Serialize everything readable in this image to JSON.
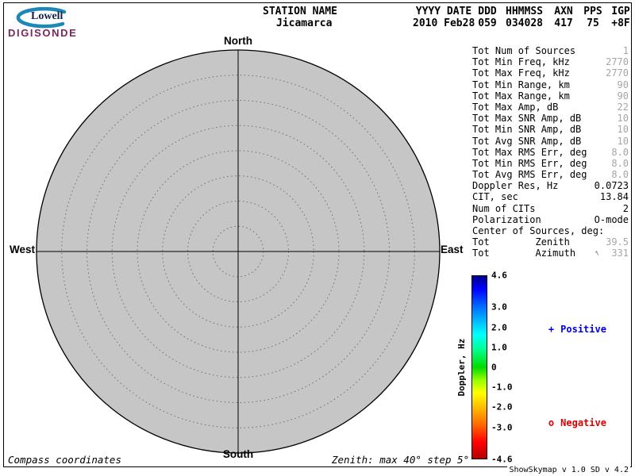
{
  "logo": {
    "name": "Lowell",
    "product": "DIGISONDE"
  },
  "header": {
    "station": {
      "label": "STATION NAME",
      "value": "Jicamarca"
    },
    "fields": [
      {
        "label": "YYYY DATE",
        "value": "2010 Feb28"
      },
      {
        "label": "DDD",
        "value": "059"
      },
      {
        "label": "HHMMSS",
        "value": "034028"
      },
      {
        "label": "AXN",
        "value": "417"
      },
      {
        "label": "PPS",
        "value": "75"
      },
      {
        "label": "IGP",
        "value": "+8F"
      }
    ]
  },
  "skymap": {
    "compass": {
      "north": "North",
      "south": "South",
      "east": "East",
      "west": "West"
    },
    "zenith_max_deg": 40,
    "zenith_step_deg": 5,
    "fill_color": "#c6c6c6",
    "coordinates_note": "Compass coordinates",
    "zenith_note": "Zenith: max 40°  step 5°"
  },
  "stats": {
    "dim_color": "#a6a6a6",
    "rows": [
      {
        "label": "Tot Num of Sources",
        "value": "1",
        "dim": true
      },
      {
        "label": "Tot Min Freq, kHz",
        "value": "2770",
        "dim": true
      },
      {
        "label": "Tot Max Freq, kHz",
        "value": "2770",
        "dim": true
      },
      {
        "label": "Tot Min Range, km",
        "value": "90",
        "dim": true
      },
      {
        "label": "Tot Max Range, km",
        "value": "90",
        "dim": true
      },
      {
        "label": "Tot Max Amp, dB",
        "value": "22",
        "dim": true
      },
      {
        "label": "Tot Max SNR Amp, dB",
        "value": "10",
        "dim": true
      },
      {
        "label": "Tot Min SNR Amp, dB",
        "value": "10",
        "dim": true
      },
      {
        "label": "Tot Avg SNR Amp, dB",
        "value": "10",
        "dim": true
      },
      {
        "label": "Tot Max RMS Err, deg",
        "value": "8.0",
        "dim": true
      },
      {
        "label": "Tot Min RMS Err, deg",
        "value": "8.0",
        "dim": true
      },
      {
        "label": "Tot Avg RMS Err, deg",
        "value": "8.0",
        "dim": true
      },
      {
        "label": "Doppler Res, Hz",
        "value": "0.0723",
        "dim": false
      },
      {
        "label": "CIT, sec",
        "value": "13.84",
        "dim": false
      },
      {
        "label": "Num of CITs",
        "value": "2",
        "dim": false
      },
      {
        "label": "Polarization",
        "value": "O-mode",
        "dim": false
      },
      {
        "label": "Center of Sources, deg:",
        "value": "",
        "dim": false
      },
      {
        "label": "Tot        Zenith",
        "value": "39.5",
        "dim": true
      },
      {
        "label": "Tot        Azimuth",
        "value": "331",
        "dim": true,
        "arrow": true
      }
    ]
  },
  "colorbar": {
    "title": "Doppler, Hz",
    "min": -4.6,
    "max": 4.6,
    "ticks": [
      {
        "label": "4.6",
        "value": 4.6
      },
      {
        "label": "3.0",
        "value": 3.0
      },
      {
        "label": "2.0",
        "value": 2.0
      },
      {
        "label": "1.0",
        "value": 1.0
      },
      {
        "label": "0",
        "value": 0
      },
      {
        "label": "-1.0",
        "value": -1.0
      },
      {
        "label": "-2.0",
        "value": -2.0
      },
      {
        "label": "-3.0",
        "value": -3.0
      },
      {
        "label": "-4.6",
        "value": -4.6
      }
    ],
    "gradient": [
      "#00008b 0%",
      "#0000ff 7%",
      "#0064ff 16%",
      "#00b4ff 24%",
      "#00ffff 32%",
      "#00ff96 40%",
      "#00dc00 50%",
      "#96ff00 57%",
      "#ffff00 64%",
      "#ffb400 73%",
      "#ff6400 82%",
      "#ff0000 91%",
      "#b40000 100%"
    ]
  },
  "legend": {
    "positive": {
      "marker": "+",
      "label": "Positive",
      "color": "#0000ee"
    },
    "negative": {
      "marker": "o",
      "label": "Negative",
      "color": "#e00000"
    }
  },
  "footer": {
    "version": "ShowSkymap v 1.0  SD v 4.2"
  }
}
